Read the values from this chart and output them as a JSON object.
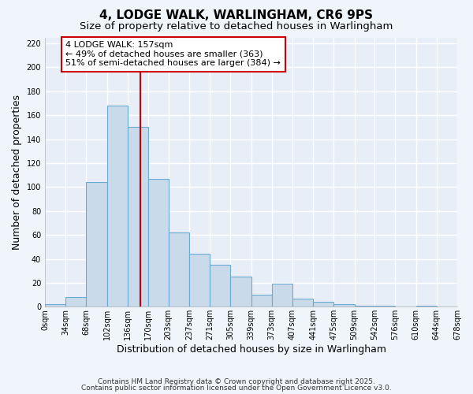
{
  "title": "4, LODGE WALK, WARLINGHAM, CR6 9PS",
  "subtitle": "Size of property relative to detached houses in Warlingham",
  "xlabel": "Distribution of detached houses by size in Warlingham",
  "ylabel": "Number of detached properties",
  "bin_edges": [
    0,
    34,
    68,
    102,
    136,
    170,
    203,
    237,
    271,
    305,
    339,
    373,
    407,
    441,
    475,
    509,
    542,
    576,
    610,
    644,
    678
  ],
  "bin_counts": [
    2,
    8,
    104,
    168,
    150,
    107,
    62,
    44,
    35,
    25,
    10,
    19,
    7,
    4,
    2,
    1,
    1,
    0,
    1,
    0
  ],
  "bar_facecolor": "#c9daea",
  "bar_edgecolor": "#6aaad4",
  "bar_linewidth": 0.8,
  "property_size": 157,
  "red_line_color": "#cc0000",
  "annotation_text": "4 LODGE WALK: 157sqm\n← 49% of detached houses are smaller (363)\n51% of semi-detached houses are larger (384) →",
  "annotation_box_edgecolor": "#cc0000",
  "annotation_box_facecolor": "#ffffff",
  "ylim": [
    0,
    225
  ],
  "yticks": [
    0,
    20,
    40,
    60,
    80,
    100,
    120,
    140,
    160,
    180,
    200,
    220
  ],
  "tick_labels": [
    "0sqm",
    "34sqm",
    "68sqm",
    "102sqm",
    "136sqm",
    "170sqm",
    "203sqm",
    "237sqm",
    "271sqm",
    "305sqm",
    "339sqm",
    "373sqm",
    "407sqm",
    "441sqm",
    "475sqm",
    "509sqm",
    "542sqm",
    "576sqm",
    "610sqm",
    "644sqm",
    "678sqm"
  ],
  "footer1": "Contains HM Land Registry data © Crown copyright and database right 2025.",
  "footer2": "Contains public sector information licensed under the Open Government Licence v3.0.",
  "bg_color": "#f0f4fb",
  "plot_bg_color": "#e8eef8",
  "grid_color": "#ffffff",
  "title_fontsize": 11,
  "subtitle_fontsize": 9.5,
  "axis_label_fontsize": 9,
  "tick_fontsize": 7,
  "annotation_fontsize": 8,
  "footer_fontsize": 6.5
}
